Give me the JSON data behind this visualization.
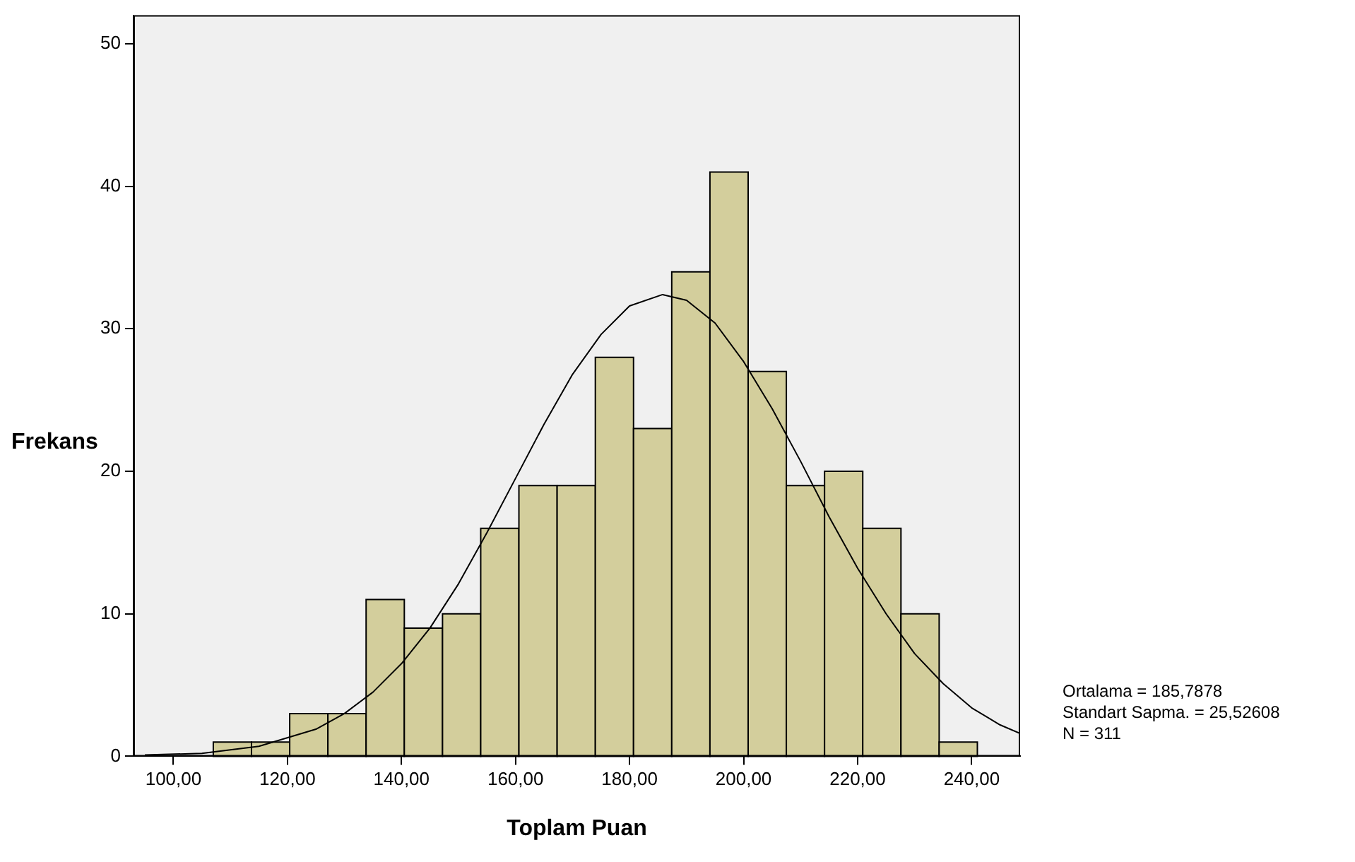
{
  "chart_data": {
    "type": "histogram",
    "xlabel": "Toplam Puan",
    "ylabel": "Frekans",
    "bins": [
      107,
      113.7,
      120.4,
      127.1,
      133.8,
      140.5,
      147.2,
      153.9,
      160.6,
      167.3,
      174,
      180.7,
      187.4,
      194.1,
      200.8,
      207.5,
      214.2,
      220.9,
      227.6,
      234.3,
      241
    ],
    "values": [
      1,
      1,
      3,
      3,
      11,
      9,
      10,
      16,
      19,
      19,
      28,
      23,
      34,
      41,
      27,
      19,
      20,
      16,
      10,
      1
    ],
    "color": "#d3ce9c",
    "series": [
      {
        "type": "line",
        "color": "#000000",
        "x": [
          95,
          105,
          115,
          125,
          130,
          135,
          140,
          145,
          150,
          155,
          160,
          165,
          170,
          175,
          180,
          185.8,
          190,
          195,
          200,
          205,
          210,
          215,
          220,
          225,
          230,
          235,
          240,
          245,
          248.5
        ],
        "values": [
          0.1,
          0.2,
          0.7,
          1.9,
          3.0,
          4.5,
          6.5,
          9.0,
          12.1,
          15.7,
          19.5,
          23.3,
          26.8,
          29.6,
          31.6,
          32.4,
          32.0,
          30.4,
          27.7,
          24.4,
          20.7,
          16.8,
          13.2,
          10.0,
          7.2,
          5.1,
          3.4,
          2.2,
          1.6
        ]
      }
    ],
    "xlim": [
      93,
      248.5
    ],
    "ylim": [
      0,
      52
    ],
    "xticks": [
      {
        "value": 100,
        "label": "100,00"
      },
      {
        "value": 120,
        "label": "120,00"
      },
      {
        "value": 140,
        "label": "140,00"
      },
      {
        "value": 160,
        "label": "160,00"
      },
      {
        "value": 180,
        "label": "180,00"
      },
      {
        "value": 200,
        "label": "200,00"
      },
      {
        "value": 220,
        "label": "220,00"
      },
      {
        "value": 240,
        "label": "240,00"
      }
    ],
    "yticks": [
      0,
      10,
      20,
      30,
      40,
      50
    ],
    "marker": "none",
    "grid": false,
    "legend": false,
    "annotations": [
      "Ortalama = 185,7878",
      "Standart Sapma. = 25,52608",
      "N = 311"
    ]
  }
}
